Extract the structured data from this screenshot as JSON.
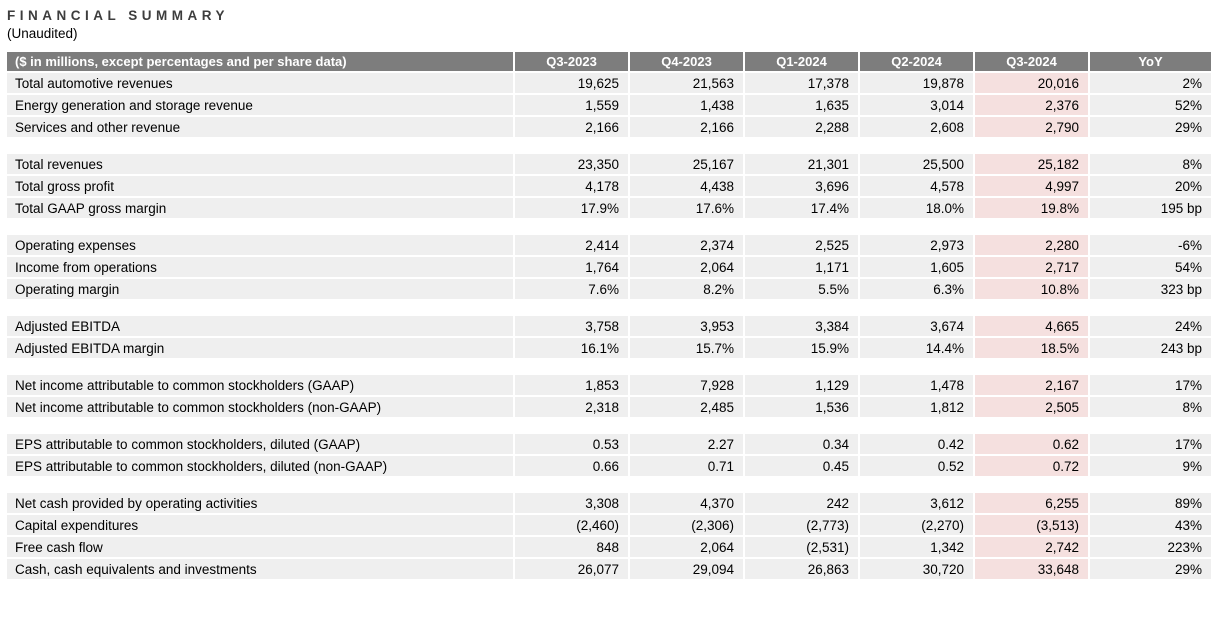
{
  "page": {
    "title": "FINANCIAL SUMMARY",
    "subtitle": "(Unaudited)"
  },
  "colors": {
    "header_bg": "#7d7d7d",
    "header_text": "#ffffff",
    "row_bg": "#efefef",
    "highlight_bg": "#f5e0df",
    "title_color": "#3d3d3d"
  },
  "table": {
    "header_label": "($ in millions, except percentages and per share data)",
    "columns": [
      "Q3-2023",
      "Q4-2023",
      "Q1-2024",
      "Q2-2024",
      "Q3-2024",
      "YoY"
    ],
    "highlight_column": "Q3-2024",
    "highlight_index": 4,
    "sections": [
      {
        "rows": [
          {
            "label": "Total automotive revenues",
            "values": [
              "19,625",
              "21,563",
              "17,378",
              "19,878",
              "20,016",
              "2%"
            ]
          },
          {
            "label": "Energy generation and storage revenue",
            "values": [
              "1,559",
              "1,438",
              "1,635",
              "3,014",
              "2,376",
              "52%"
            ]
          },
          {
            "label": "Services and other revenue",
            "values": [
              "2,166",
              "2,166",
              "2,288",
              "2,608",
              "2,790",
              "29%"
            ]
          }
        ]
      },
      {
        "rows": [
          {
            "label": "Total revenues",
            "values": [
              "23,350",
              "25,167",
              "21,301",
              "25,500",
              "25,182",
              "8%"
            ]
          },
          {
            "label": "Total gross profit",
            "values": [
              "4,178",
              "4,438",
              "3,696",
              "4,578",
              "4,997",
              "20%"
            ]
          },
          {
            "label": "Total GAAP gross margin",
            "values": [
              "17.9%",
              "17.6%",
              "17.4%",
              "18.0%",
              "19.8%",
              "195 bp"
            ]
          }
        ]
      },
      {
        "rows": [
          {
            "label": "Operating expenses",
            "values": [
              "2,414",
              "2,374",
              "2,525",
              "2,973",
              "2,280",
              "-6%"
            ]
          },
          {
            "label": "Income from operations",
            "values": [
              "1,764",
              "2,064",
              "1,171",
              "1,605",
              "2,717",
              "54%"
            ]
          },
          {
            "label": "Operating margin",
            "values": [
              "7.6%",
              "8.2%",
              "5.5%",
              "6.3%",
              "10.8%",
              "323 bp"
            ]
          }
        ]
      },
      {
        "rows": [
          {
            "label": "Adjusted EBITDA",
            "values": [
              "3,758",
              "3,953",
              "3,384",
              "3,674",
              "4,665",
              "24%"
            ]
          },
          {
            "label": "Adjusted EBITDA margin",
            "values": [
              "16.1%",
              "15.7%",
              "15.9%",
              "14.4%",
              "18.5%",
              "243 bp"
            ]
          }
        ]
      },
      {
        "rows": [
          {
            "label": "Net income attributable to common stockholders (GAAP)",
            "values": [
              "1,853",
              "7,928",
              "1,129",
              "1,478",
              "2,167",
              "17%"
            ]
          },
          {
            "label": "Net income attributable to common stockholders (non-GAAP)",
            "values": [
              "2,318",
              "2,485",
              "1,536",
              "1,812",
              "2,505",
              "8%"
            ]
          }
        ]
      },
      {
        "rows": [
          {
            "label": "EPS attributable to common stockholders, diluted (GAAP)",
            "values": [
              "0.53",
              "2.27",
              "0.34",
              "0.42",
              "0.62",
              "17%"
            ]
          },
          {
            "label": "EPS attributable to common stockholders, diluted (non-GAAP)",
            "values": [
              "0.66",
              "0.71",
              "0.45",
              "0.52",
              "0.72",
              "9%"
            ]
          }
        ]
      },
      {
        "rows": [
          {
            "label": "Net cash provided by operating activities",
            "values": [
              "3,308",
              "4,370",
              "242",
              "3,612",
              "6,255",
              "89%"
            ]
          },
          {
            "label": "Capital expenditures",
            "values": [
              "(2,460)",
              "(2,306)",
              "(2,773)",
              "(2,270)",
              "(3,513)",
              "43%"
            ]
          },
          {
            "label": "Free cash flow",
            "values": [
              "848",
              "2,064",
              "(2,531)",
              "1,342",
              "2,742",
              "223%"
            ]
          },
          {
            "label": "Cash, cash equivalents and investments",
            "values": [
              "26,077",
              "29,094",
              "26,863",
              "30,720",
              "33,648",
              "29%"
            ]
          }
        ]
      }
    ]
  }
}
